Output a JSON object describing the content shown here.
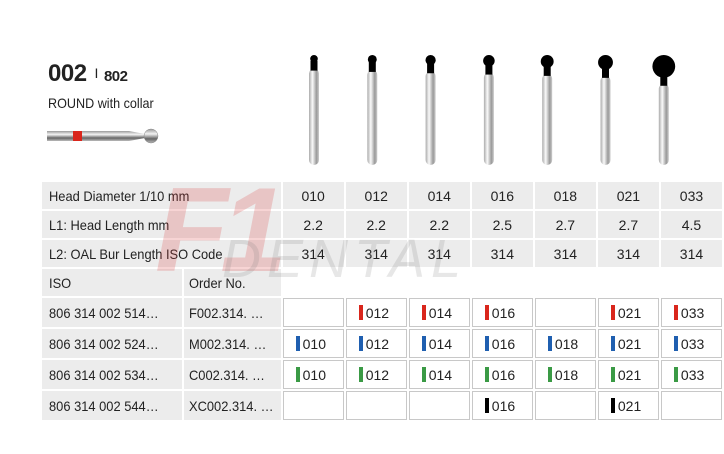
{
  "product": {
    "code": "002",
    "separator": "I",
    "alt_code": "802",
    "shape": "ROUND with collar"
  },
  "watermark": {
    "logo_text": "F1 DENTAL"
  },
  "specs": [
    {
      "label": "Head Diameter 1/10 mm",
      "values": [
        "010",
        "012",
        "014",
        "016",
        "018",
        "021",
        "033"
      ]
    },
    {
      "label": "L1: Head Length mm",
      "values": [
        "2.2",
        "2.2",
        "2.2",
        "2.5",
        "2.7",
        "2.7",
        "4.5"
      ]
    },
    {
      "label": "L2: OAL Bur Length ISO Code",
      "values": [
        "314",
        "314",
        "314",
        "314",
        "314",
        "314",
        "314"
      ]
    }
  ],
  "order_header": {
    "iso": "ISO",
    "order": "Order No."
  },
  "orders": [
    {
      "iso": "806 314 002 514…",
      "order": "F002.314. …",
      "color": "#d9261c",
      "cells": [
        null,
        "012",
        "014",
        "016",
        null,
        "021",
        "033"
      ]
    },
    {
      "iso": "806 314 002 524…",
      "order": "M002.314. …",
      "color": "#1f5fb0",
      "cells": [
        "010",
        "012",
        "014",
        "016",
        "018",
        "021",
        "033"
      ]
    },
    {
      "iso": "806 314 002 534…",
      "order": "C002.314. …",
      "color": "#3a9a45",
      "cells": [
        "010",
        "012",
        "014",
        "016",
        "018",
        "021",
        "033"
      ]
    },
    {
      "iso": "806 314 002 544…",
      "order": "XC002.314. …",
      "color": "#000000",
      "cells": [
        null,
        null,
        null,
        "016",
        null,
        "021",
        null
      ]
    }
  ]
}
